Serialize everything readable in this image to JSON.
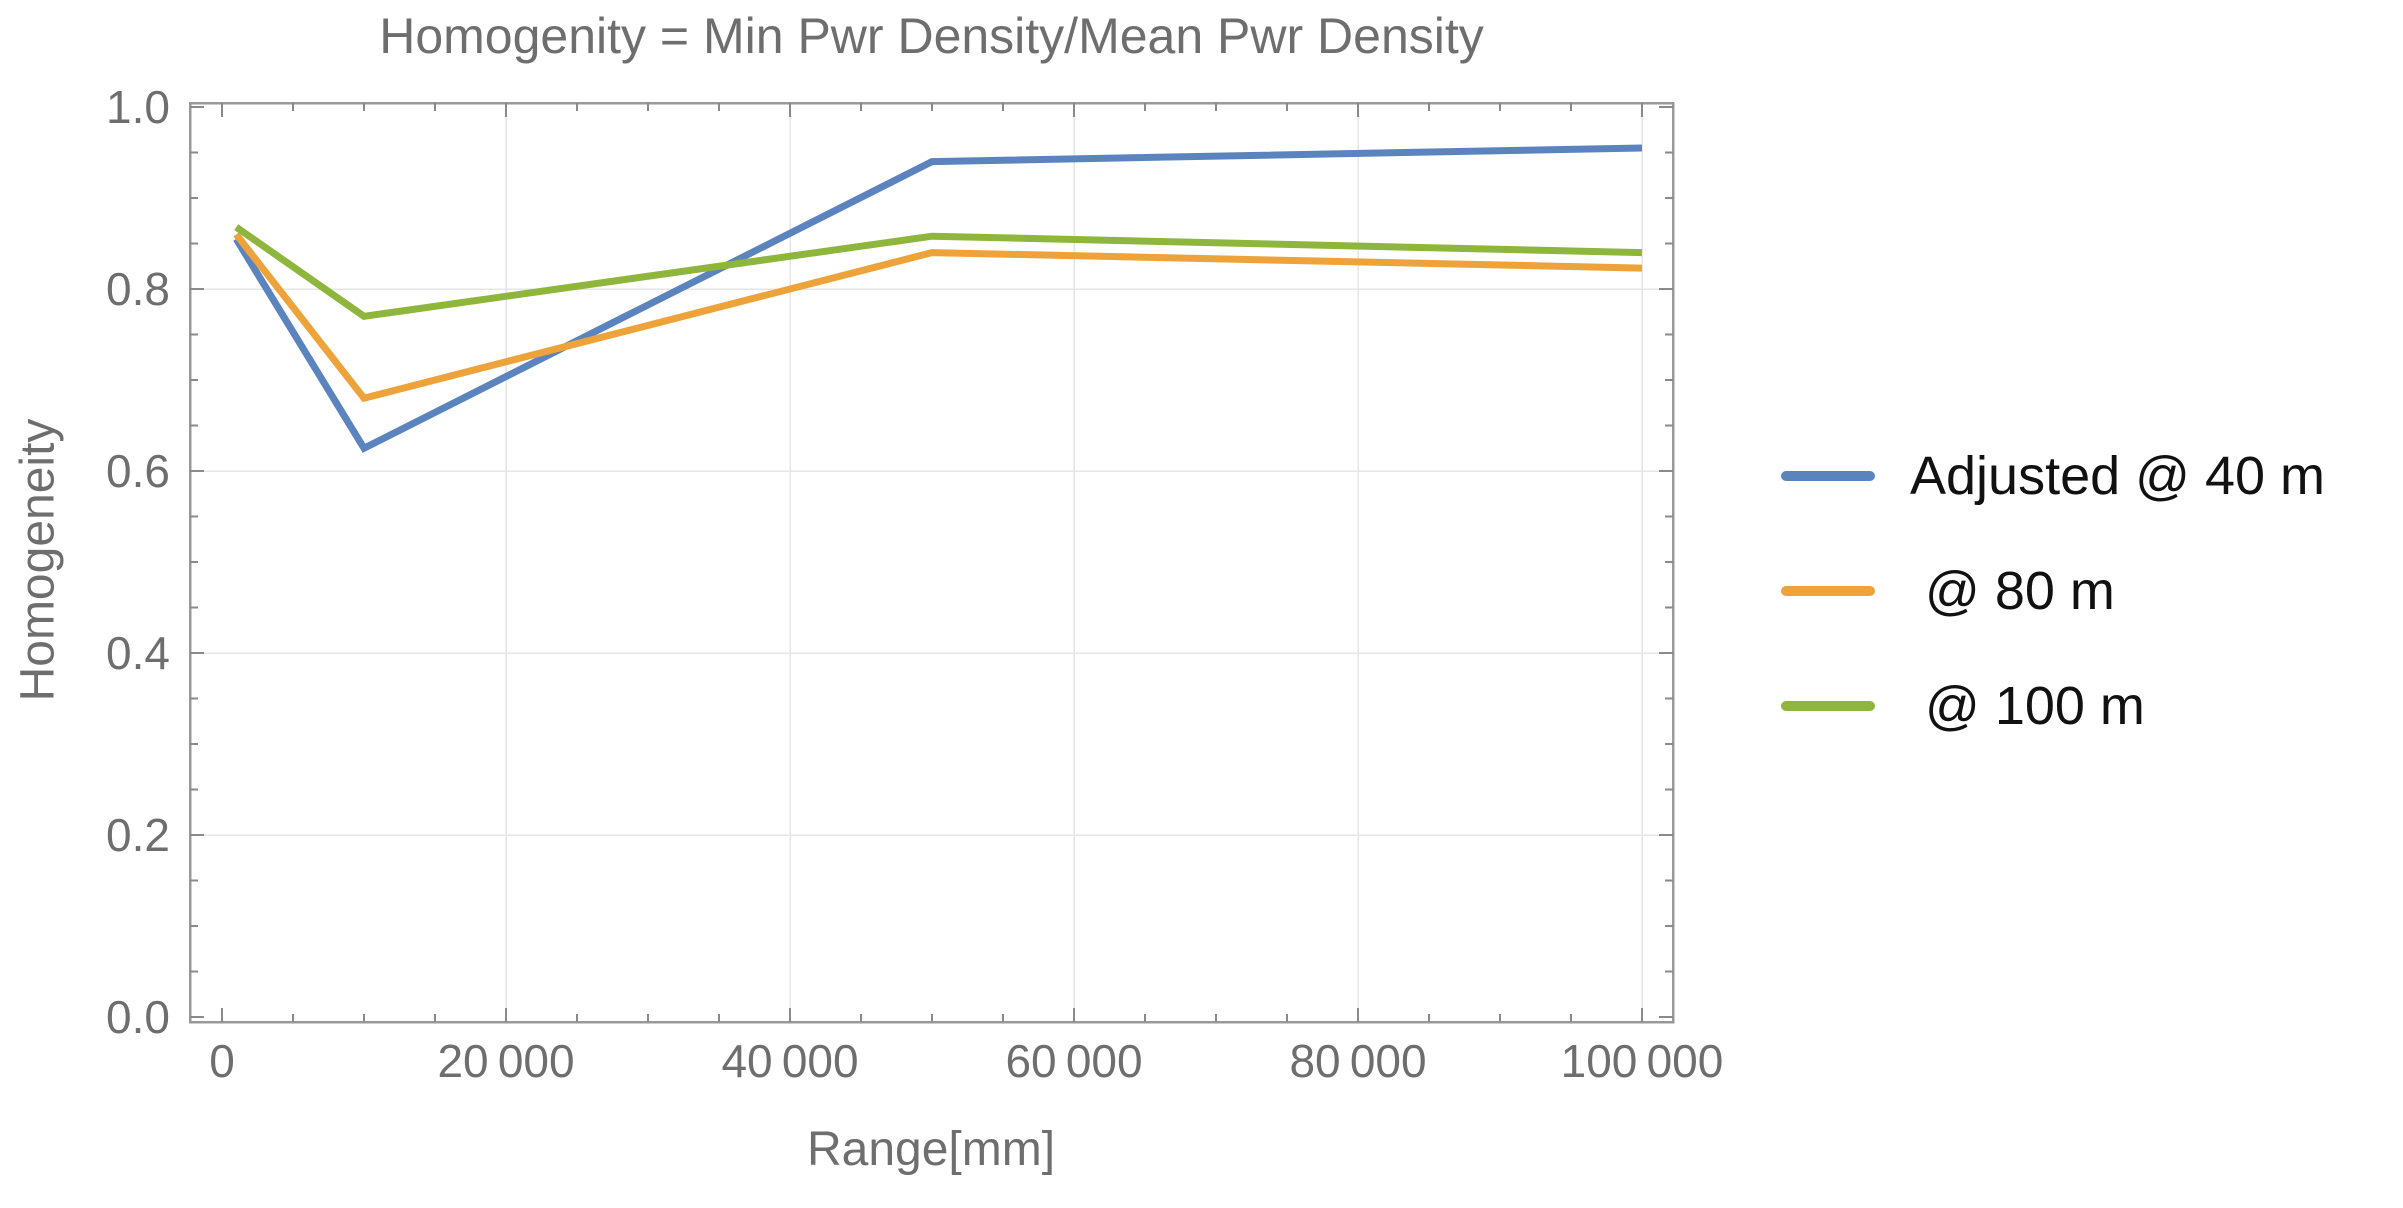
{
  "page": {
    "background": "#ffffff"
  },
  "colors": {
    "title_text": "#6e6e6e",
    "tick_text": "#6e6e6e",
    "legend_text": "#111111",
    "frame": "#999999",
    "tick_mark": "#8a8a8a",
    "gridline": "#e6e6e6"
  },
  "chart_data": {
    "type": "line",
    "title": "Homogenity = Min Pwr Density/Mean Pwr Density",
    "xlabel": "Range[mm]",
    "ylabel": "Homogeneity",
    "xlim": [
      -2300,
      102200
    ],
    "ylim": [
      0.0,
      1.0
    ],
    "grid": true,
    "legend_position": "right-outside",
    "x": [
      1000,
      10000,
      50000,
      100000
    ],
    "series": [
      {
        "name": "Adjusted @ 40 m",
        "color": "#5b84bf",
        "values": [
          0.855,
          0.625,
          0.94,
          0.955
        ]
      },
      {
        "name": " @ 80 m",
        "color": "#eda33a",
        "values": [
          0.86,
          0.68,
          0.84,
          0.823
        ]
      },
      {
        "name": " @ 100 m",
        "color": "#8fb63c",
        "values": [
          0.868,
          0.77,
          0.858,
          0.84
        ]
      }
    ],
    "xticks": {
      "values": [
        0,
        20000,
        40000,
        60000,
        80000,
        100000
      ],
      "labels": [
        "0",
        "20 000",
        "40 000",
        "60 000",
        "80 000",
        "100 000"
      ]
    },
    "yticks": {
      "values": [
        0.0,
        0.2,
        0.4,
        0.6,
        0.8,
        1.0
      ],
      "labels": [
        "0.0",
        "0.2",
        "0.4",
        "0.6",
        "0.8",
        "1.0"
      ]
    },
    "x_minor_step": 5000,
    "y_minor_step": 0.05
  }
}
